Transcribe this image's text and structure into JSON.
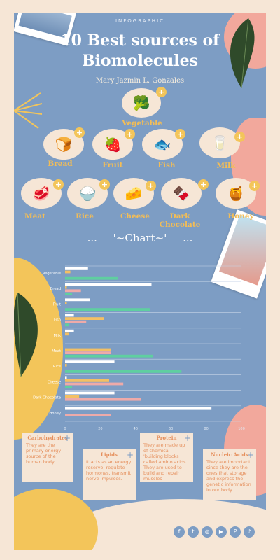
{
  "header": {
    "eyebrow": "INFOGRAPHIC",
    "title_line1": "10 Best sources of",
    "title_line2": "Biomolecules",
    "author": "Mary Jazmin L. Gonzales"
  },
  "foods": [
    {
      "label": "Vegetable",
      "icon": "vegetable-icon"
    },
    {
      "label": "Bread",
      "icon": "bread-icon"
    },
    {
      "label": "Fruit",
      "icon": "strawberry-icon"
    },
    {
      "label": "Fish",
      "icon": "fish-icon"
    },
    {
      "label": "Milk",
      "icon": "milk-bottle-icon"
    },
    {
      "label": "Meat",
      "icon": "steak-icon"
    },
    {
      "label": "Rice",
      "icon": "rice-bowl-icon"
    },
    {
      "label": "Cheese",
      "icon": "cheese-icon"
    },
    {
      "label": "Dark Chocolate",
      "icon": "chocolate-icon"
    },
    {
      "label": "Honey",
      "icon": "honey-jar-icon"
    }
  ],
  "chart_title": "'~Chart~'",
  "chart_dots": "...",
  "chart_data": {
    "type": "bar",
    "orientation": "horizontal",
    "categories": [
      "Vegetable",
      "Bread",
      "Fruit",
      "Fish",
      "Milk",
      "Meat",
      "Rice",
      "Cheese",
      "Dark Chocolate",
      "Honey"
    ],
    "series": [
      {
        "name": "Carbohydrates",
        "color": "#ffffff",
        "values": [
          13,
          49,
          14,
          5,
          5,
          0,
          28,
          1,
          28,
          83
        ]
      },
      {
        "name": "Lipids",
        "color": "#f3c064",
        "values": [
          3,
          1,
          1,
          22,
          2,
          26,
          1,
          25,
          8,
          0
        ]
      },
      {
        "name": "Protein",
        "color": "#eeaaa9",
        "values": [
          0,
          9,
          0,
          12,
          0,
          26,
          0,
          33,
          43,
          26
        ]
      },
      {
        "name": "Nucleic Acids",
        "color": "#5fcfa0",
        "values": [
          30,
          4,
          48,
          2,
          0,
          50,
          66,
          4,
          0,
          0
        ]
      }
    ],
    "xlim": [
      0,
      100
    ],
    "xticks": [
      "0",
      "20",
      "40",
      "60",
      "80",
      "100"
    ],
    "legend": "bottom",
    "grid": true
  },
  "captions": [
    {
      "title": "Carbohydrates",
      "text": "They are the primary energy source of the human body"
    },
    {
      "title": "Lipids",
      "text": "It acts as an energy reserve, regulate hormones, transmit nerve impulses."
    },
    {
      "title": "Protein",
      "text": "They are made up of chemical 'building blocks called amino acids. They are used to build and repair muscles"
    },
    {
      "title": "Nucleic Acids",
      "text": "They are important since they are the ones that storage and express the genetic information in our body"
    }
  ],
  "plus_symbol": "+",
  "social": [
    "f",
    "t",
    "◎",
    "▶",
    "P",
    "♪"
  ],
  "colors": {
    "panel": "#7d9dc4",
    "cream": "#f6e6d6",
    "yellow": "#f3c55a",
    "pink": "#f2a89c",
    "label": "#f3bd56"
  }
}
